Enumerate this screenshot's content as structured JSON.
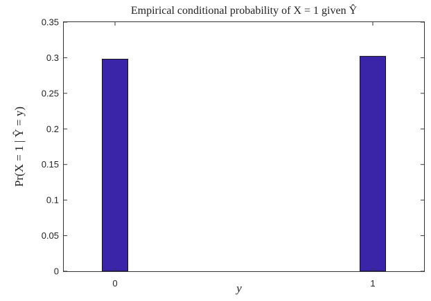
{
  "chart_data": {
    "type": "bar",
    "title": "Empirical conditional probability of X = 1 given Ŷ",
    "xlabel": "y",
    "ylabel": "Pr(X = 1 | Ŷ = y)",
    "categories": [
      "0",
      "1"
    ],
    "values": [
      0.298,
      0.302
    ],
    "ylim": [
      0,
      0.35
    ],
    "yticks": [
      "0",
      "0.05",
      "0.1",
      "0.15",
      "0.2",
      "0.25",
      "0.3",
      "0.35"
    ],
    "grid": false,
    "bar_color": "#3a25a8",
    "bar_edge_color": "#111111"
  }
}
